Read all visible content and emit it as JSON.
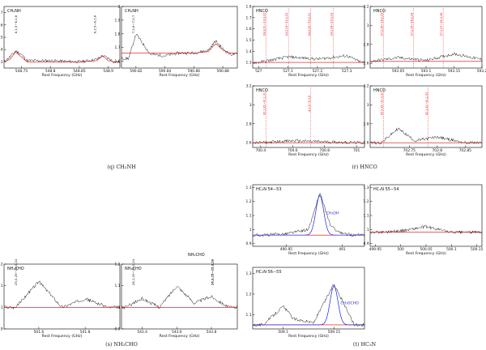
{
  "chart_data": [
    {
      "id": "q1",
      "type": "line",
      "molecule": "CH2NH",
      "x": [
        548.72,
        548.73,
        548.74,
        548.75,
        548.76,
        548.8,
        548.85,
        548.88,
        548.89,
        548.9,
        548.91
      ],
      "y": [
        1.3,
        1.34,
        1.39,
        1.36,
        1.31,
        1.31,
        1.3,
        1.32,
        1.35,
        1.33,
        1.3
      ],
      "fit": [
        1.3,
        1.32,
        1.38,
        1.34,
        1.3,
        1.3,
        1.3,
        1.31,
        1.35,
        1.31,
        1.3
      ],
      "xticks": [
        548.75,
        548.8,
        548.85,
        548.9
      ],
      "yticks": [
        1.3,
        1.4,
        1.5,
        1.6,
        1.7
      ],
      "xlim": [
        548.72,
        548.92
      ],
      "ylim": [
        1.25,
        1.75
      ],
      "xlabel": "Rest Frequency (GHz)",
      "lines": [
        "6,1,5−6,1,6",
        "6,2,5−6,1,6"
      ]
    },
    {
      "id": "q2",
      "type": "line",
      "molecule": "CH2NH",
      "x": [
        590.815,
        590.82,
        590.83,
        590.84,
        590.85,
        590.86,
        590.87,
        590.875,
        590.88,
        590.885
      ],
      "y": [
        1.62,
        1.8,
        1.65,
        1.64,
        1.66,
        1.66,
        1.68,
        1.75,
        1.69,
        1.65
      ],
      "fit": [
        1.66,
        1.66,
        1.66,
        1.66,
        1.66,
        1.66,
        1.67,
        1.73,
        1.68,
        1.66
      ],
      "xticks": [
        590.82,
        590.84,
        590.86,
        590.88
      ],
      "yticks": [
        1.6,
        1.7,
        1.8,
        1.9,
        2
      ],
      "xlim": [
        590.81,
        590.89
      ],
      "ylim": [
        1.55,
        2.0
      ],
      "xlabel": "Rest Frequency (GHz)",
      "lines": [
        "7,1,6−7,0,7"
      ]
    },
    {
      "id": "r1",
      "type": "line",
      "molecule": "HNCO",
      "x": [
        527.0,
        527.1,
        527.2,
        527.3,
        527.35
      ],
      "y": [
        1.3,
        1.35,
        1.33,
        1.36,
        1.3
      ],
      "xticks": [
        527,
        527.1,
        527.2,
        527.3
      ],
      "yticks": [
        1.3,
        1.4,
        1.5,
        1.6,
        1.7,
        1.8
      ],
      "xlim": [
        526.98,
        527.36
      ],
      "ylim": [
        1.25,
        1.8
      ],
      "xlabel": "Rest Frequency (GHz)",
      "lines": [
        "24,3,21−23,3,20",
        "24,2,23−23,2,22",
        "24,2,22−23,2,21",
        "24,0,24−23,0,23"
      ]
    },
    {
      "id": "r2",
      "type": "line",
      "molecule": "HNCO",
      "x": [
        593.0,
        593.05,
        593.1,
        593.15,
        593.2
      ],
      "y": [
        2.62,
        2.66,
        2.63,
        2.7,
        2.64
      ],
      "xticks": [
        593.05,
        593.1,
        593.15,
        593.2
      ],
      "yticks": [
        2.6,
        2.8,
        3,
        3.2
      ],
      "xlim": [
        593.0,
        593.2
      ],
      "ylim": [
        2.55,
        3.2
      ],
      "xlabel": "Rest Frequency (GHz)",
      "lines": [
        "27,2,26−26,2,25",
        "27,2,25−26,2,24",
        "27,0,27−26,0,26"
      ]
    },
    {
      "id": "r3",
      "type": "line",
      "molecule": "HNCO",
      "x": [
        700.4,
        700.6,
        700.8,
        701.0
      ],
      "y": [
        2.6,
        2.62,
        2.61,
        2.6
      ],
      "xticks": [
        700.4,
        700.6,
        700.8,
        701
      ],
      "yticks": [
        2.6,
        2.8,
        3,
        3.2
      ],
      "xlim": [
        700.35,
        701.05
      ],
      "ylim": [
        2.55,
        3.2
      ],
      "xlabel": "Rest Frequency (GHz)",
      "lines": [
        "32,1,32−31,1,31",
        "4,1,3−3,0,3"
      ]
    },
    {
      "id": "r4",
      "type": "line",
      "molecule": "HNCO",
      "x": [
        702.7,
        702.73,
        702.76,
        702.8,
        702.85
      ],
      "y": [
        2.6,
        2.75,
        2.62,
        2.66,
        2.6
      ],
      "xticks": [
        702.75,
        702.8,
        702.85
      ],
      "yticks": [
        2.6,
        2.8,
        3,
        3.2
      ],
      "xlim": [
        702.68,
        702.88
      ],
      "ylim": [
        2.55,
        3.2
      ],
      "xlabel": "Rest Frequency (GHz)",
      "lines": [
        "32,0,32−31,0,31",
        "32,1,31−31,1,30"
      ]
    },
    {
      "id": "s1",
      "type": "line",
      "molecule": "NH2CHO",
      "x": [
        501.5,
        501.6,
        501.7,
        501.8,
        501.9
      ],
      "y": [
        1.0,
        1.12,
        1.0,
        1.04,
        1.0
      ],
      "xticks": [
        501.6,
        501.8
      ],
      "yticks": [
        0.9,
        1,
        1.1,
        1.2
      ],
      "xlim": [
        501.45,
        501.95
      ],
      "ylim": [
        0.9,
        1.2
      ],
      "xlabel": "Rest Frequency (GHz)",
      "lines": [
        "25,0,25−24,0,24"
      ]
    },
    {
      "id": "s2",
      "type": "line",
      "molecule": "NH2CHO",
      "x": [
        543.3,
        543.4,
        543.5,
        543.6,
        543.7,
        543.8,
        543.9
      ],
      "y": [
        1.0,
        1.04,
        1.0,
        1.1,
        1.02,
        1.05,
        1.0
      ],
      "xticks": [
        543.4,
        543.6,
        543.8
      ],
      "yticks": [
        0.9,
        1,
        1.1,
        1.2
      ],
      "xlim": [
        543.28,
        543.95
      ],
      "ylim": [
        0.9,
        1.2
      ],
      "xlabel": "Rest Frequency (GHz)",
      "lines": [
        "26,1,25−25,1,24",
        "26,3,23−25,3,22",
        "26,2,25−25,2,24"
      ]
    },
    {
      "id": "t1",
      "type": "line",
      "molecule": "HC3N",
      "transition": "54−53",
      "x": [
        490.93,
        490.95,
        490.97,
        490.98,
        490.99,
        491.0,
        491.01
      ],
      "y": [
        0.96,
        0.97,
        1.0,
        1.26,
        1.02,
        0.97,
        0.96
      ],
      "xticks": [
        490.95,
        491
      ],
      "yticks": [
        0.9,
        1,
        1.1,
        1.2,
        1.3
      ],
      "xlim": [
        490.92,
        491.02
      ],
      "ylim": [
        0.88,
        1.32
      ],
      "xlabel": "Rest Frequency (GHz)",
      "annotation": "CH3OH"
    },
    {
      "id": "t2",
      "type": "line",
      "molecule": "HC3N",
      "transition": "55−54",
      "x": [
        499.95,
        500.0,
        500.05,
        500.1,
        500.15
      ],
      "y": [
        0.98,
        0.99,
        1.02,
        0.98,
        0.98
      ],
      "xticks": [
        499.95,
        500,
        500.05,
        500.1,
        500.15
      ],
      "yticks": [
        0.9,
        1,
        1.1,
        1.2,
        1.3
      ],
      "xlim": [
        499.94,
        500.16
      ],
      "ylim": [
        0.88,
        1.32
      ],
      "xlabel": "Rest Frequency (GHz)"
    },
    {
      "id": "t3",
      "type": "line",
      "molecule": "HC3N",
      "transition": "56−55",
      "x": [
        509.08,
        509.1,
        509.11,
        509.13,
        509.15,
        509.17
      ],
      "y": [
        1.05,
        1.14,
        1.08,
        1.06,
        1.25,
        1.05
      ],
      "xticks": [
        509.1,
        509.15
      ],
      "yticks": [
        1.1,
        1.2,
        1.3
      ],
      "xlim": [
        509.07,
        509.18
      ],
      "ylim": [
        1.03,
        1.33
      ],
      "xlabel": "Rest Frequency (GHz)",
      "annotation": "CH3OCHO"
    }
  ],
  "captions": {
    "q": "(q) CH₂NH",
    "r": "(r) HNCO",
    "s": "(s) NH₂CHO",
    "t": "(t) HC₃N"
  },
  "labels": {
    "ch2nh": "CH₂NH",
    "hnco": "HNCO",
    "nh2cho": "NH₂CHO",
    "hc3n": "HC₃N",
    "ch3oh": "CH₃OH",
    "ch3ocho": "CH₃OCHO"
  },
  "colors": {
    "spectrum": "#000000",
    "fit": "#e00000",
    "component": "#1a1aff",
    "linelabel": "#dd0000"
  }
}
